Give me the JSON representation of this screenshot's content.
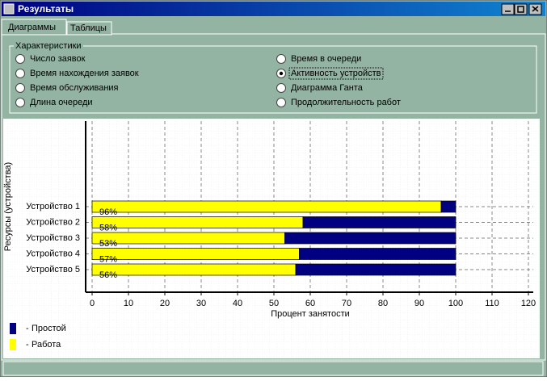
{
  "window": {
    "title": "Результаты"
  },
  "tabs": [
    "Диаграммы",
    "Таблицы"
  ],
  "group": {
    "title": "Характеристики",
    "options": [
      "Число заявок",
      "Время нахождения заявок",
      "Время обслуживания",
      "Длина очереди",
      "Время в очереди",
      "Активность устройств",
      "Диаграмма Ганта",
      "Продолжительность работ"
    ],
    "checked": 5
  },
  "chart_data": {
    "type": "bar",
    "orientation": "horizontal",
    "stacked": true,
    "categories": [
      "Устройство 1",
      "Устройство 2",
      "Устройство 3",
      "Устройство 4",
      "Устройство 5"
    ],
    "series": [
      {
        "name": "Работа",
        "color": "#ffff00",
        "values": [
          96,
          58,
          53,
          57,
          56
        ],
        "value_labels": [
          "96%",
          "58%",
          "53%",
          "57%",
          "56%"
        ]
      },
      {
        "name": "Простой",
        "color": "#000080",
        "values": [
          4,
          42,
          47,
          43,
          44
        ]
      }
    ],
    "xlabel": "Процент занятости",
    "ylabel": "Ресурсы (устройства)",
    "xlim": [
      0,
      120
    ],
    "xticks": [
      0,
      10,
      20,
      30,
      40,
      50,
      60,
      70,
      80,
      90,
      100,
      110,
      120
    ],
    "grid": true
  }
}
